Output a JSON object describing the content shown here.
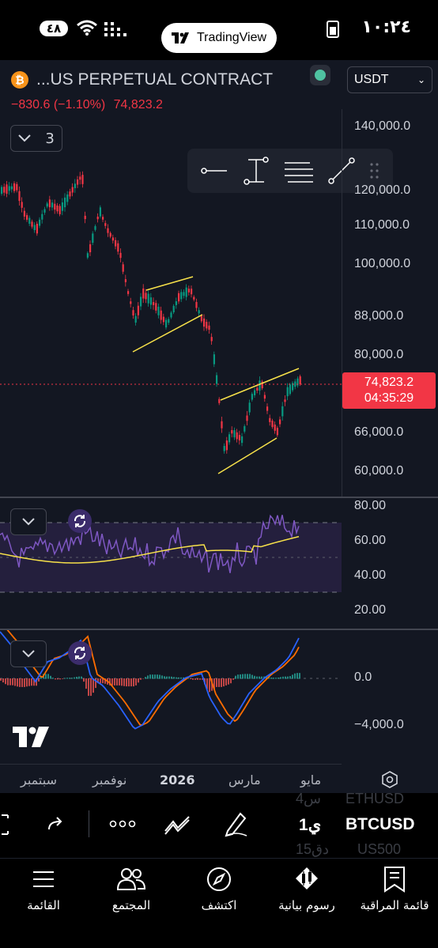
{
  "status_bar": {
    "time": "١٠:٢٤",
    "battery_level": "٤٨",
    "app_pill": "TradingView"
  },
  "chart": {
    "symbol_title": "...US PERPETUAL CONTRACT",
    "currency": "USDT",
    "change": "−830.6 (−1.10%)",
    "last_price": "74,823.2",
    "countdown": "04:35:29",
    "indicator_count": "3",
    "colors": {
      "up": "#089981",
      "down": "#f23645",
      "pattern": "#f7e14a",
      "rsi": "#7e57c2",
      "rsi_ma": "#f7e14a",
      "macd": "#2962ff",
      "signal": "#ff6d00"
    }
  },
  "price_axis": [
    "140,000.0",
    "120,000.0",
    "110,000.0",
    "100,000.0",
    "88,000.0",
    "80,000.0",
    "66,000.0",
    "60,000.0"
  ],
  "rsi_axis": [
    "80.00",
    "60.00",
    "40.00",
    "20.00"
  ],
  "macd_axis": [
    "0.0",
    "−4,000.0"
  ],
  "time_axis": [
    "سبتمبر",
    "نوفمبر",
    "2026",
    "مارس",
    "مايو"
  ],
  "watchlist": {
    "prev_symbol": "ETHUSD",
    "prev_interval": "4س",
    "current_symbol": "BTCUSD",
    "current_interval": "1ي",
    "next_symbol": "US500",
    "next_interval": "15دق"
  },
  "nav": [
    {
      "icon": "menu-icon",
      "label": "القائمة"
    },
    {
      "icon": "community-icon",
      "label": "المجتمع"
    },
    {
      "icon": "compass-icon",
      "label": "اكتشف"
    },
    {
      "icon": "chart-bulb-icon",
      "label": "رسوم بيانية"
    },
    {
      "icon": "watchlist-icon",
      "label": "قائمة المراقبة"
    }
  ]
}
